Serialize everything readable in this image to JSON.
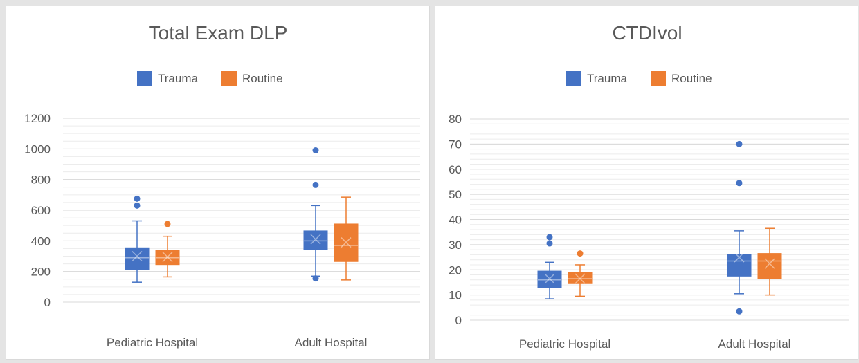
{
  "colors": {
    "trauma": "#4472c4",
    "routine": "#ed7d31",
    "gridline": "#d9d9d9",
    "text": "#595959"
  },
  "legend": {
    "trauma": "Trauma",
    "routine": "Routine"
  },
  "chart_data": [
    {
      "type": "box",
      "title": "Total Exam DLP",
      "xlabel": "",
      "ylabel": "",
      "categories": [
        "Pediatric Hospital",
        "Adult Hospital"
      ],
      "yticks": [
        "0",
        "200",
        "400",
        "600",
        "800",
        "1000",
        "1200"
      ],
      "ylim": [
        0,
        1200
      ],
      "minor_step": 50,
      "legend_position": "top",
      "series": [
        {
          "name": "Trauma",
          "boxes": [
            {
              "min": 130,
              "q1": 210,
              "median": 290,
              "q3": 355,
              "max": 530,
              "mean": 300,
              "outliers": [
                630,
                675
              ]
            },
            {
              "min": 170,
              "q1": 345,
              "median": 400,
              "q3": 465,
              "max": 630,
              "mean": 410,
              "outliers": [
                155,
                765,
                990
              ]
            }
          ]
        },
        {
          "name": "Routine",
          "boxes": [
            {
              "min": 165,
              "q1": 245,
              "median": 290,
              "q3": 340,
              "max": 430,
              "mean": 295,
              "outliers": [
                510
              ]
            },
            {
              "min": 145,
              "q1": 265,
              "median": 370,
              "q3": 510,
              "max": 685,
              "mean": 390,
              "outliers": []
            }
          ]
        }
      ]
    },
    {
      "type": "box",
      "title": "CTDIvol",
      "xlabel": "",
      "ylabel": "",
      "categories": [
        "Pediatric Hospital",
        "Adult Hospital"
      ],
      "yticks": [
        "0",
        "10",
        "20",
        "30",
        "40",
        "50",
        "60",
        "70",
        "80"
      ],
      "ylim": [
        0,
        80
      ],
      "minor_step": 2,
      "legend_position": "top",
      "series": [
        {
          "name": "Trauma",
          "boxes": [
            {
              "min": 8.5,
              "q1": 13,
              "median": 16,
              "q3": 19.5,
              "max": 23,
              "mean": 16.5,
              "outliers": [
                30.5,
                33
              ]
            },
            {
              "min": 10.5,
              "q1": 17.5,
              "median": 23.5,
              "q3": 26,
              "max": 35.5,
              "mean": 25,
              "outliers": [
                3.5,
                54.5,
                70
              ]
            }
          ]
        },
        {
          "name": "Routine",
          "boxes": [
            {
              "min": 9.5,
              "q1": 14.5,
              "median": 16.5,
              "q3": 19,
              "max": 22,
              "mean": 16.5,
              "outliers": [
                26.5
              ]
            },
            {
              "min": 10,
              "q1": 16.5,
              "median": 23.5,
              "q3": 26.5,
              "max": 36.5,
              "mean": 22.5,
              "outliers": []
            }
          ]
        }
      ]
    }
  ]
}
